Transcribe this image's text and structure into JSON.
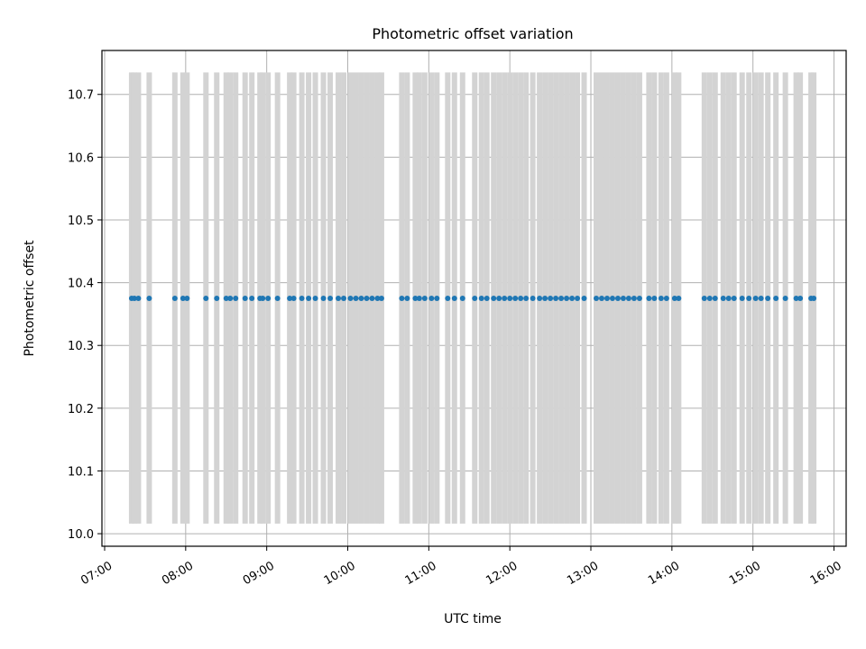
{
  "chart_data": {
    "type": "scatter",
    "title": "Photometric offset variation",
    "xlabel": "UTC time",
    "ylabel": "Photometric offset",
    "x_tick_labels": [
      "07:00",
      "08:00",
      "09:00",
      "10:00",
      "11:00",
      "12:00",
      "13:00",
      "14:00",
      "15:00",
      "16:00"
    ],
    "y_tick_labels": [
      "10.0",
      "10.1",
      "10.2",
      "10.3",
      "10.4",
      "10.5",
      "10.6",
      "10.7"
    ],
    "xlim": [
      "06:58",
      "16:09"
    ],
    "ylim": [
      9.98,
      10.77
    ],
    "grid": true,
    "colors": {
      "points": "#1f77b4",
      "error_bars": "#d3d3d3",
      "grid": "#b0b0b0"
    },
    "error_bar": {
      "low": 10.016,
      "high": 10.735
    },
    "series": [
      {
        "values": [
          {
            "x": "07:20",
            "y": 10.375
          },
          {
            "x": "07:22",
            "y": 10.375
          },
          {
            "x": "07:25",
            "y": 10.375
          },
          {
            "x": "07:33",
            "y": 10.375
          },
          {
            "x": "07:52",
            "y": 10.375
          },
          {
            "x": "07:58",
            "y": 10.375
          },
          {
            "x": "08:01",
            "y": 10.375
          },
          {
            "x": "08:15",
            "y": 10.375
          },
          {
            "x": "08:23",
            "y": 10.375
          },
          {
            "x": "08:30",
            "y": 10.375
          },
          {
            "x": "08:33",
            "y": 10.375
          },
          {
            "x": "08:37",
            "y": 10.375
          },
          {
            "x": "08:44",
            "y": 10.375
          },
          {
            "x": "08:49",
            "y": 10.375
          },
          {
            "x": "08:55",
            "y": 10.375
          },
          {
            "x": "08:57",
            "y": 10.375
          },
          {
            "x": "09:01",
            "y": 10.375
          },
          {
            "x": "09:08",
            "y": 10.375
          },
          {
            "x": "09:17",
            "y": 10.375
          },
          {
            "x": "09:20",
            "y": 10.375
          },
          {
            "x": "09:26",
            "y": 10.375
          },
          {
            "x": "09:31",
            "y": 10.375
          },
          {
            "x": "09:36",
            "y": 10.375
          },
          {
            "x": "09:42",
            "y": 10.375
          },
          {
            "x": "09:47",
            "y": 10.375
          },
          {
            "x": "09:53",
            "y": 10.375
          },
          {
            "x": "09:57",
            "y": 10.375
          },
          {
            "x": "10:02",
            "y": 10.375
          },
          {
            "x": "10:06",
            "y": 10.375
          },
          {
            "x": "10:10",
            "y": 10.375
          },
          {
            "x": "10:14",
            "y": 10.375
          },
          {
            "x": "10:18",
            "y": 10.375
          },
          {
            "x": "10:22",
            "y": 10.375
          },
          {
            "x": "10:25",
            "y": 10.375
          },
          {
            "x": "10:40",
            "y": 10.375
          },
          {
            "x": "10:44",
            "y": 10.375
          },
          {
            "x": "10:50",
            "y": 10.375
          },
          {
            "x": "10:53",
            "y": 10.375
          },
          {
            "x": "10:57",
            "y": 10.375
          },
          {
            "x": "11:02",
            "y": 10.375
          },
          {
            "x": "11:06",
            "y": 10.375
          },
          {
            "x": "11:14",
            "y": 10.375
          },
          {
            "x": "11:19",
            "y": 10.375
          },
          {
            "x": "11:25",
            "y": 10.375
          },
          {
            "x": "11:34",
            "y": 10.375
          },
          {
            "x": "11:39",
            "y": 10.375
          },
          {
            "x": "11:43",
            "y": 10.375
          },
          {
            "x": "11:48",
            "y": 10.375
          },
          {
            "x": "11:52",
            "y": 10.375
          },
          {
            "x": "11:56",
            "y": 10.375
          },
          {
            "x": "12:00",
            "y": 10.375
          },
          {
            "x": "12:04",
            "y": 10.375
          },
          {
            "x": "12:08",
            "y": 10.375
          },
          {
            "x": "12:12",
            "y": 10.375
          },
          {
            "x": "12:17",
            "y": 10.375
          },
          {
            "x": "12:22",
            "y": 10.375
          },
          {
            "x": "12:26",
            "y": 10.375
          },
          {
            "x": "12:30",
            "y": 10.375
          },
          {
            "x": "12:34",
            "y": 10.375
          },
          {
            "x": "12:38",
            "y": 10.375
          },
          {
            "x": "12:42",
            "y": 10.375
          },
          {
            "x": "12:46",
            "y": 10.375
          },
          {
            "x": "12:50",
            "y": 10.375
          },
          {
            "x": "12:55",
            "y": 10.375
          },
          {
            "x": "13:04",
            "y": 10.375
          },
          {
            "x": "13:08",
            "y": 10.375
          },
          {
            "x": "13:12",
            "y": 10.375
          },
          {
            "x": "13:16",
            "y": 10.375
          },
          {
            "x": "13:20",
            "y": 10.375
          },
          {
            "x": "13:24",
            "y": 10.375
          },
          {
            "x": "13:28",
            "y": 10.375
          },
          {
            "x": "13:32",
            "y": 10.375
          },
          {
            "x": "13:36",
            "y": 10.375
          },
          {
            "x": "13:43",
            "y": 10.375
          },
          {
            "x": "13:47",
            "y": 10.375
          },
          {
            "x": "13:52",
            "y": 10.375
          },
          {
            "x": "13:56",
            "y": 10.375
          },
          {
            "x": "14:02",
            "y": 10.375
          },
          {
            "x": "14:05",
            "y": 10.375
          },
          {
            "x": "14:24",
            "y": 10.375
          },
          {
            "x": "14:28",
            "y": 10.375
          },
          {
            "x": "14:32",
            "y": 10.375
          },
          {
            "x": "14:38",
            "y": 10.375
          },
          {
            "x": "14:42",
            "y": 10.375
          },
          {
            "x": "14:46",
            "y": 10.375
          },
          {
            "x": "14:52",
            "y": 10.375
          },
          {
            "x": "14:57",
            "y": 10.375
          },
          {
            "x": "15:02",
            "y": 10.375
          },
          {
            "x": "15:06",
            "y": 10.375
          },
          {
            "x": "15:11",
            "y": 10.375
          },
          {
            "x": "15:17",
            "y": 10.375
          },
          {
            "x": "15:24",
            "y": 10.375
          },
          {
            "x": "15:32",
            "y": 10.375
          },
          {
            "x": "15:35",
            "y": 10.375
          },
          {
            "x": "15:43",
            "y": 10.375
          },
          {
            "x": "15:45",
            "y": 10.375
          }
        ]
      }
    ]
  }
}
